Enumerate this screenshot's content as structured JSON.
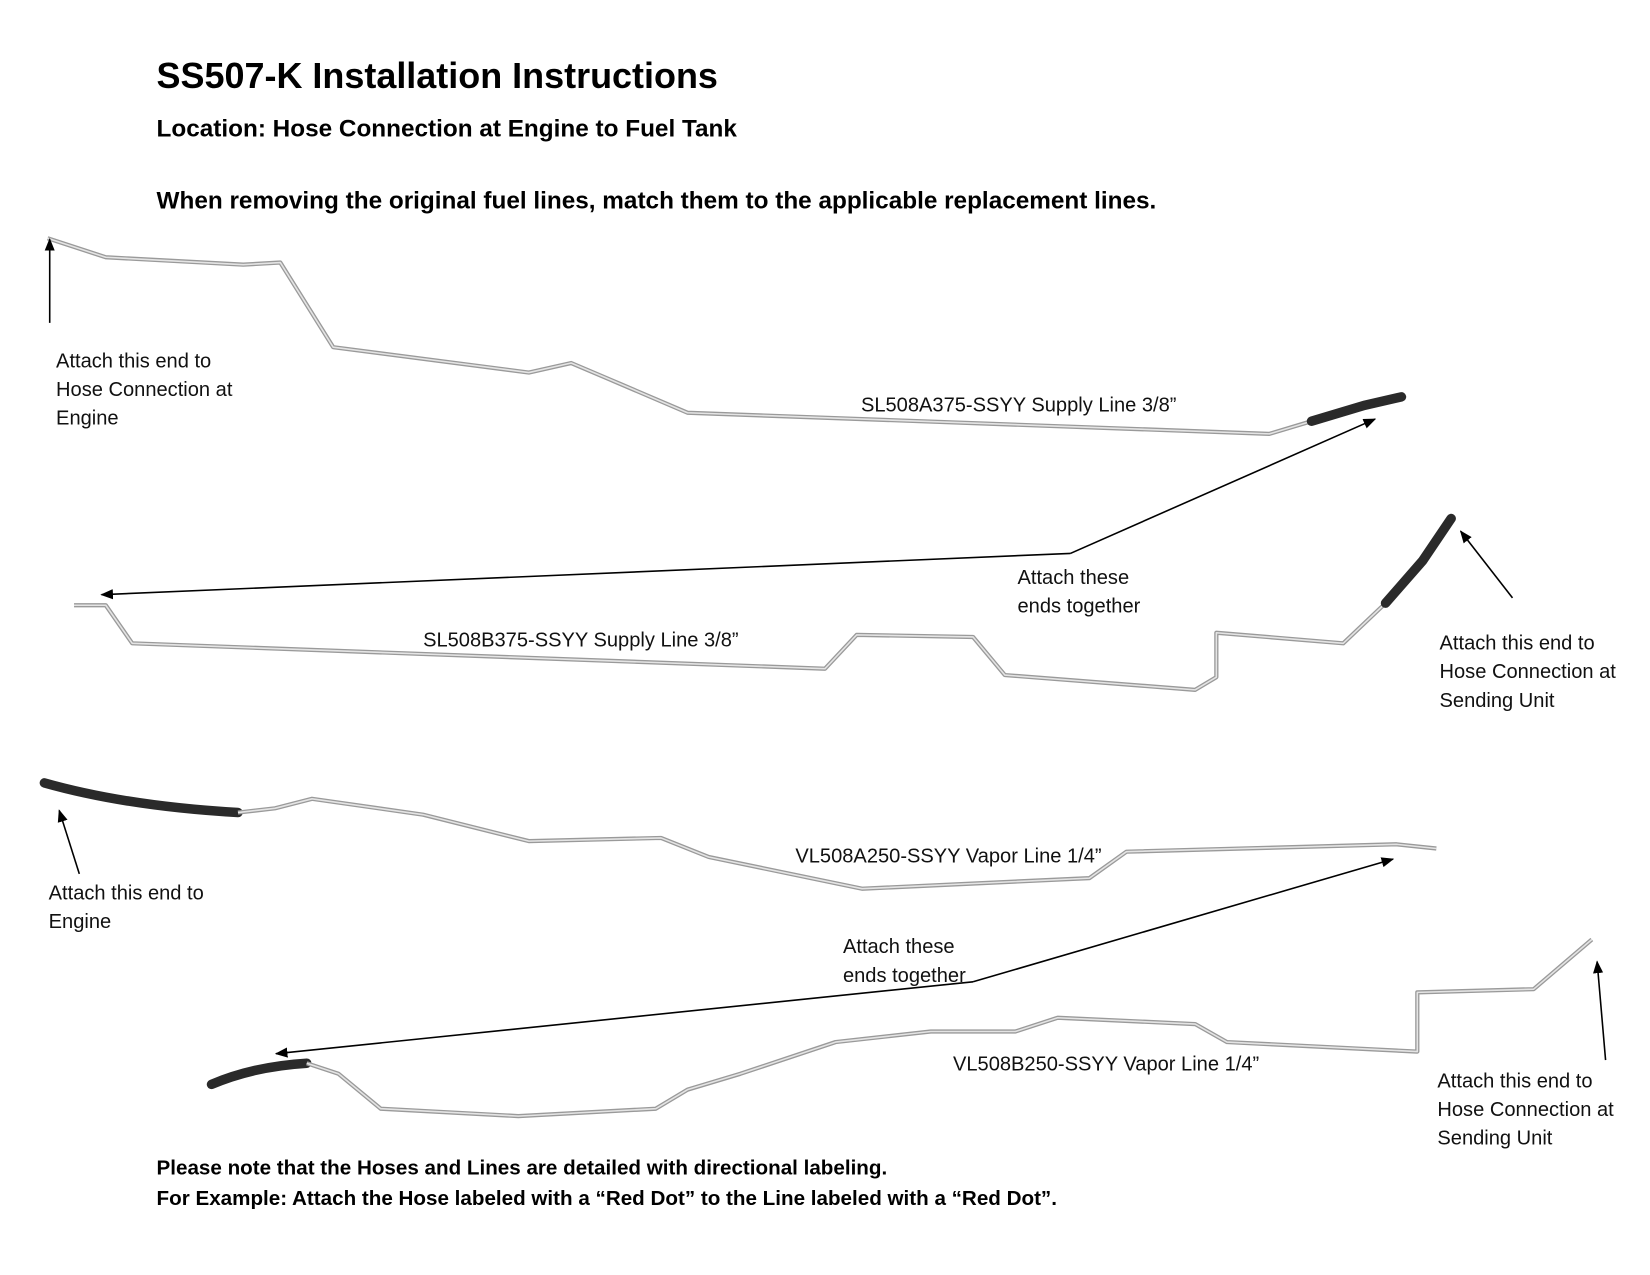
{
  "header": {
    "title": "SS507-K Installation Instructions",
    "location": "Location: Hose Connection at Engine to Fuel Tank",
    "instruction": "When removing the original fuel lines, match them to the applicable replacement lines."
  },
  "lines": [
    {
      "label": "SL508A375-SSYY Supply Line 3/8”"
    },
    {
      "label": "SL508B375-SSYY Supply Line 3/8”"
    },
    {
      "label": "VL508A250-SSYY Vapor Line 1/4”"
    },
    {
      "label": "VL508B250-SSYY Vapor Line 1/4”"
    }
  ],
  "callouts": [
    {
      "lines": [
        "Attach this end to",
        "Hose Connection at",
        "Engine"
      ]
    },
    {
      "lines": [
        "Attach these",
        "ends together"
      ]
    },
    {
      "lines": [
        "Attach this end to",
        "Hose Connection at",
        "Sending Unit"
      ]
    },
    {
      "lines": [
        "Attach this end to",
        "Engine"
      ]
    },
    {
      "lines": [
        "Attach these",
        "ends together"
      ]
    },
    {
      "lines": [
        "Attach this end to",
        "Hose Connection at",
        "Sending Unit"
      ]
    }
  ],
  "note": {
    "lines": [
      "Please note that the Hoses and Lines are detailed with directional labeling.",
      "For Example: Attach the Hose labeled with a “Red Dot” to the Line labeled with a “Red Dot”."
    ]
  }
}
